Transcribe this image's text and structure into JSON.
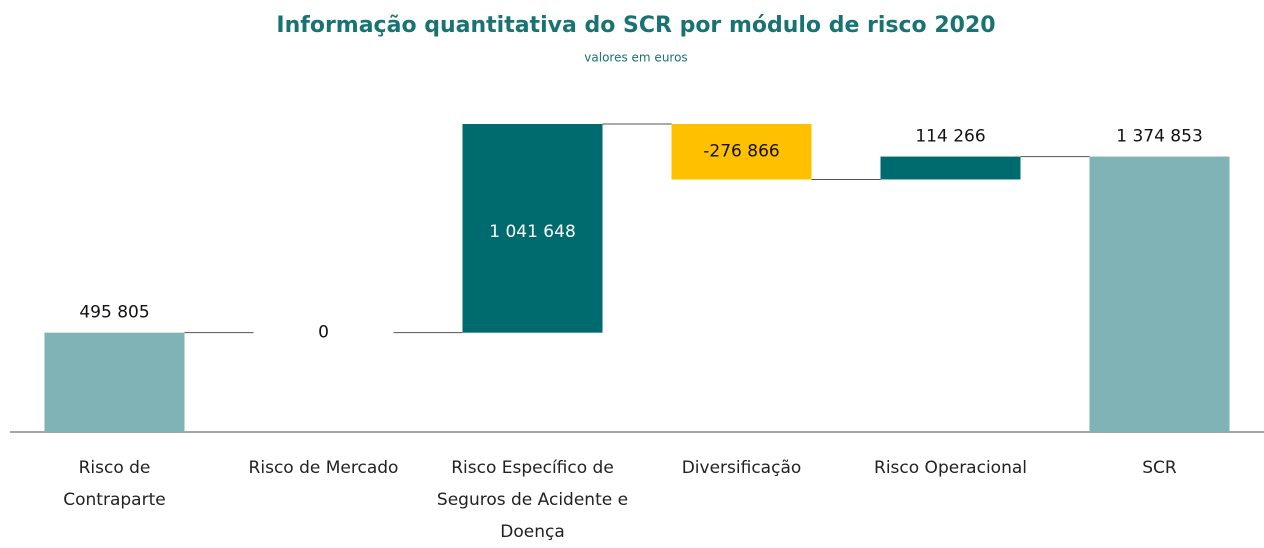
{
  "chart_data": {
    "type": "waterfall",
    "title": "Informação quantitativa do SCR por módulo de risco 2020",
    "subtitle": "valores em euros",
    "categories": [
      "Risco de Contraparte",
      "Risco de Mercado",
      "Risco Específico de Seguros de Acidente e Doença",
      "Diversificação",
      "Risco Operacional",
      "SCR"
    ],
    "values": [
      495805,
      0,
      1041648,
      -276866,
      114266,
      1374853
    ],
    "value_labels": [
      "495 805",
      "0",
      "1 041 648",
      "-276 866",
      "114 266",
      "1 374 853"
    ],
    "colors": [
      "#7fb3b5",
      "#7fb3b5",
      "#006b6f",
      "#ffc000",
      "#006b6f",
      "#7fb3b5"
    ]
  }
}
